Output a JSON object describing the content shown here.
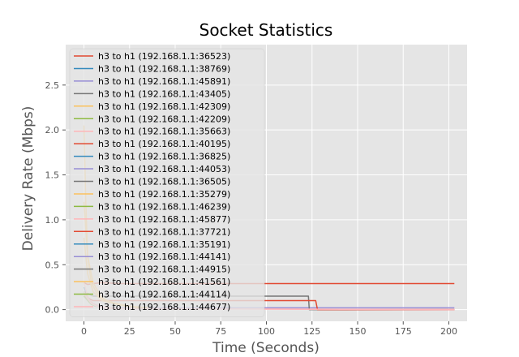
{
  "chart_data": {
    "type": "line",
    "title": "Socket Statistics",
    "xlabel": "Time (Seconds)",
    "ylabel": "Delivery Rate (Mbps)",
    "xlim": [
      -10,
      210
    ],
    "ylim": [
      -0.13,
      2.95
    ],
    "xticks": [
      0,
      25,
      50,
      75,
      100,
      125,
      150,
      175,
      200
    ],
    "yticks": [
      0.0,
      0.5,
      1.0,
      1.5,
      2.0,
      2.5
    ],
    "xtick_labels": [
      "0",
      "25",
      "50",
      "75",
      "100",
      "125",
      "150",
      "175",
      "200"
    ],
    "ytick_labels": [
      "0.0",
      "0.5",
      "1.0",
      "1.5",
      "2.0",
      "2.5"
    ],
    "grid": true,
    "legend_position": "upper-left",
    "colors": {
      "background": "#e5e5e5",
      "grid": "#ffffff",
      "palette": [
        "#e24a33",
        "#348abd",
        "#988ed5",
        "#777777",
        "#fbc15e",
        "#8eba42",
        "#ffb5b8"
      ]
    },
    "series": [
      {
        "name": "h3 to h1 (192.168.1.1:36523)",
        "color": "#e24a33",
        "x": [
          0,
          2,
          5,
          10,
          20,
          40,
          203
        ],
        "y": [
          0.3,
          0.28,
          0.29,
          0.3,
          0.29,
          0.29,
          0.29
        ]
      },
      {
        "name": "h3 to h1 (192.168.1.1:38769)",
        "color": "#348abd",
        "x": [
          0,
          3,
          6,
          10,
          20
        ],
        "y": [
          0.25,
          0.1,
          0.05,
          0.02,
          0.01
        ]
      },
      {
        "name": "h3 to h1 (192.168.1.1:45891)",
        "color": "#988ed5",
        "x": [
          0,
          3,
          6,
          10,
          203
        ],
        "y": [
          0.2,
          0.08,
          0.04,
          0.02,
          0.02
        ]
      },
      {
        "name": "h3 to h1 (192.168.1.1:43405)",
        "color": "#777777",
        "x": [
          0,
          5,
          10,
          123,
          123.5,
          203
        ],
        "y": [
          0.2,
          0.15,
          0.15,
          0.15,
          0.0,
          0.0
        ]
      },
      {
        "name": "h3 to h1 (192.168.1.1:42309)",
        "color": "#fbc15e",
        "x": [
          0,
          1,
          2,
          4,
          8,
          15,
          25,
          35
        ],
        "y": [
          2.05,
          1.2,
          0.6,
          0.3,
          0.15,
          0.08,
          0.04,
          0.02
        ]
      },
      {
        "name": "h3 to h1 (192.168.1.1:42209)",
        "color": "#8eba42",
        "x": [
          0,
          3,
          6,
          12,
          20
        ],
        "y": [
          0.2,
          0.08,
          0.04,
          0.02,
          0.01
        ]
      },
      {
        "name": "h3 to h1 (192.168.1.1:35663)",
        "color": "#ffb5b8",
        "x": [
          0,
          2,
          5,
          10,
          20,
          203
        ],
        "y": [
          0.3,
          0.15,
          0.07,
          0.03,
          0.01,
          0.0
        ]
      },
      {
        "name": "h3 to h1 (192.168.1.1:40195)",
        "color": "#e24a33",
        "x": [
          0,
          5,
          10,
          127,
          128,
          203
        ],
        "y": [
          0.15,
          0.1,
          0.1,
          0.1,
          0.0,
          0.0
        ]
      },
      {
        "name": "h3 to h1 (192.168.1.1:36825)",
        "color": "#348abd",
        "x": [
          0,
          4,
          8,
          15
        ],
        "y": [
          0.2,
          0.08,
          0.03,
          0.01
        ]
      },
      {
        "name": "h3 to h1 (192.168.1.1:44053)",
        "color": "#988ed5",
        "x": [
          0,
          4,
          8,
          15
        ],
        "y": [
          0.18,
          0.07,
          0.03,
          0.01
        ]
      },
      {
        "name": "h3 to h1 (192.168.1.1:36505)",
        "color": "#777777",
        "x": [
          0,
          4,
          8,
          15
        ],
        "y": [
          0.2,
          0.08,
          0.03,
          0.01
        ]
      },
      {
        "name": "h3 to h1 (192.168.1.1:35279)",
        "color": "#fbc15e",
        "x": [
          0,
          2,
          5,
          10,
          20,
          30
        ],
        "y": [
          1.2,
          0.6,
          0.3,
          0.12,
          0.05,
          0.02
        ]
      },
      {
        "name": "h3 to h1 (192.168.1.1:46239)",
        "color": "#8eba42",
        "x": [
          0,
          4,
          8,
          15
        ],
        "y": [
          0.15,
          0.06,
          0.03,
          0.01
        ]
      },
      {
        "name": "h3 to h1 (192.168.1.1:45877)",
        "color": "#ffb5b8",
        "x": [
          0,
          4,
          8,
          15
        ],
        "y": [
          0.2,
          0.08,
          0.03,
          0.01
        ]
      },
      {
        "name": "h3 to h1 (192.168.1.1:37721)",
        "color": "#e24a33",
        "x": [
          0,
          4,
          8,
          15
        ],
        "y": [
          0.18,
          0.07,
          0.03,
          0.01
        ]
      },
      {
        "name": "h3 to h1 (192.168.1.1:35191)",
        "color": "#348abd",
        "x": [
          0,
          4,
          8,
          15
        ],
        "y": [
          0.15,
          0.06,
          0.03,
          0.01
        ]
      },
      {
        "name": "h3 to h1 (192.168.1.1:44141)",
        "color": "#988ed5",
        "x": [
          0,
          4,
          8,
          15
        ],
        "y": [
          0.15,
          0.06,
          0.03,
          0.01
        ]
      },
      {
        "name": "h3 to h1 (192.168.1.1:44915)",
        "color": "#777777",
        "x": [
          0,
          4,
          8,
          15
        ],
        "y": [
          0.18,
          0.07,
          0.03,
          0.01
        ]
      },
      {
        "name": "h3 to h1 (192.168.1.1:41561)",
        "color": "#fbc15e",
        "x": [
          0,
          2,
          5,
          10,
          20,
          30
        ],
        "y": [
          0.8,
          0.4,
          0.2,
          0.1,
          0.05,
          0.02
        ]
      },
      {
        "name": "h3 to h1 (192.168.1.1:44114)",
        "color": "#8eba42",
        "x": [
          0,
          4,
          8,
          15
        ],
        "y": [
          0.15,
          0.06,
          0.03,
          0.01
        ]
      },
      {
        "name": "h3 to h1 (192.168.1.1:44677)",
        "color": "#ffb5b8",
        "x": [
          0,
          4,
          8,
          15,
          203
        ],
        "y": [
          0.18,
          0.07,
          0.03,
          0.01,
          0.0
        ]
      }
    ]
  }
}
